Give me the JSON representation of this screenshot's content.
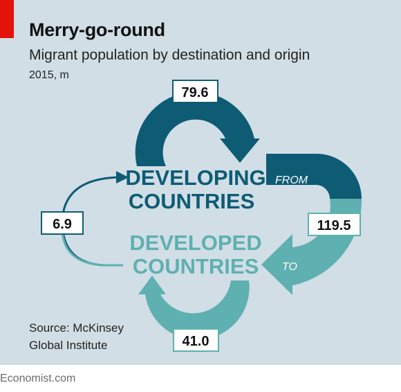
{
  "header": {
    "title": "Merry-go-round",
    "subtitle": "Migrant population by destination and origin",
    "unit": "2015, m"
  },
  "diagram": {
    "developing_line1": "DEVELOPING",
    "developing_line2": "COUNTRIES",
    "developed_line1": "DEVELOPED",
    "developed_line2": "COUNTRIES",
    "from_label": "FROM",
    "to_label": "TO",
    "flows": {
      "developing_to_developing": "79.6",
      "developing_to_developed": "119.5",
      "developed_to_developing": "6.9",
      "developed_to_developed": "41.0"
    }
  },
  "source": {
    "line1": "Source: McKinsey",
    "line2": "Global Institute"
  },
  "footer": {
    "brand": "Economist.com"
  },
  "colors": {
    "background": "#d1dee6",
    "developing": "#0e5b74",
    "developed": "#5fb0b0",
    "accent_red": "#e3120b"
  }
}
